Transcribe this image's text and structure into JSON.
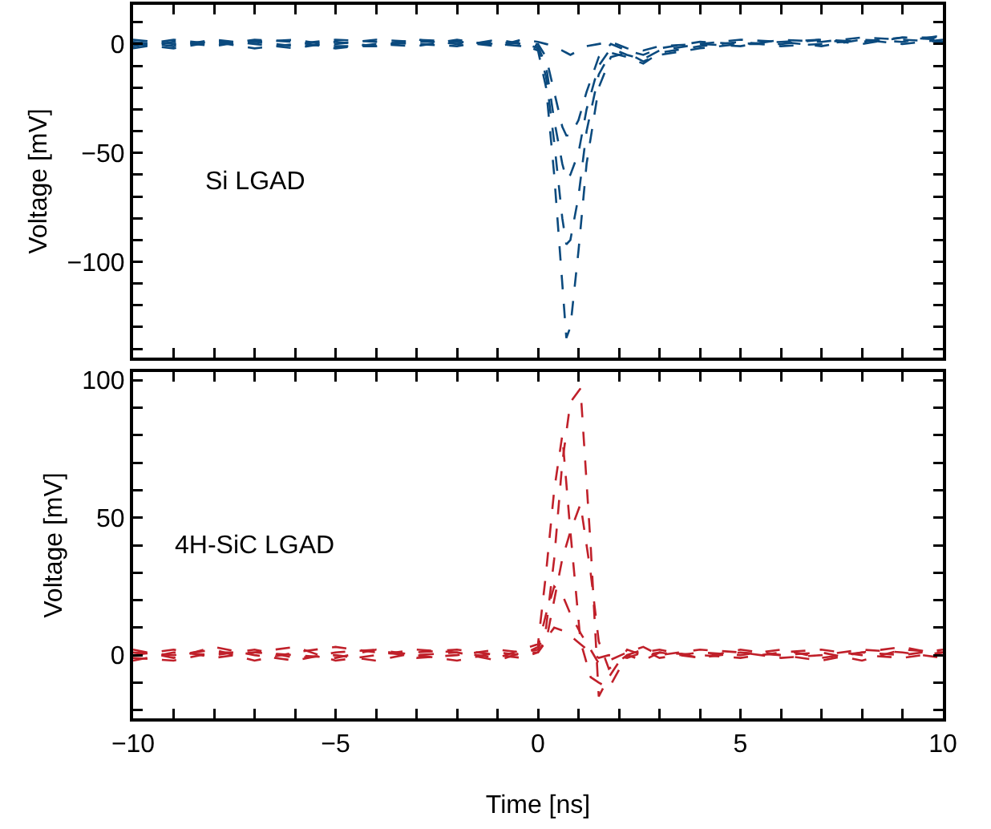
{
  "chart_data": [
    {
      "type": "line",
      "ylabel": "Voltage [mV]",
      "annotations": [
        "Si LGAD"
      ],
      "line_style": "dashed",
      "marker": "none",
      "grid": false,
      "tick_labels": "y",
      "xlim": [
        -10,
        10
      ],
      "xticks": [
        -10,
        {
          "value": -9,
          "label": null
        },
        {
          "value": -8,
          "label": null
        },
        {
          "value": -7,
          "label": null
        },
        {
          "value": -6,
          "label": null
        },
        -5,
        {
          "value": -4,
          "label": null
        },
        {
          "value": -3,
          "label": null
        },
        {
          "value": -2,
          "label": null
        },
        {
          "value": -1,
          "label": null
        },
        0,
        {
          "value": 1,
          "label": null
        },
        {
          "value": 2,
          "label": null
        },
        {
          "value": 3,
          "label": null
        },
        {
          "value": 4,
          "label": null
        },
        5,
        {
          "value": 6,
          "label": null
        },
        {
          "value": 7,
          "label": null
        },
        {
          "value": 8,
          "label": null
        },
        {
          "value": 9,
          "label": null
        },
        10
      ],
      "ylim": [
        -144,
        18
      ],
      "yticks": [
        {
          "value": -140,
          "label": null
        },
        {
          "value": -130,
          "label": null
        },
        {
          "value": -120,
          "label": null
        },
        {
          "value": -110,
          "label": null
        },
        -100,
        {
          "value": -90,
          "label": null
        },
        {
          "value": -80,
          "label": null
        },
        {
          "value": -70,
          "label": null
        },
        {
          "value": -60,
          "label": null
        },
        -50,
        {
          "value": -40,
          "label": null
        },
        {
          "value": -30,
          "label": null
        },
        {
          "value": -20,
          "label": null
        },
        {
          "value": -10,
          "label": null
        },
        0,
        {
          "value": 10,
          "label": null
        }
      ],
      "x": [
        -10,
        -9,
        -8,
        -7,
        -6,
        -5,
        -4,
        -3,
        -2,
        -1,
        -0.4,
        0,
        0.2,
        0.4,
        0.6,
        0.7,
        0.8,
        1.0,
        1.2,
        1.5,
        1.8,
        2.2,
        2.6,
        3,
        4,
        5,
        6,
        7,
        8,
        9,
        10
      ],
      "series": [
        {
          "color": "#0b4a7e",
          "values": [
            1,
            -1,
            2,
            0,
            -2,
            1,
            -1,
            2,
            0,
            1,
            0,
            -3,
            -20,
            -60,
            -110,
            -135,
            -130,
            -95,
            -55,
            -20,
            -6,
            -4,
            -8,
            -5,
            -2,
            0,
            1,
            2,
            0,
            3,
            2
          ]
        },
        {
          "color": "#0b4a7e",
          "values": [
            -2,
            1,
            -1,
            2,
            1,
            -2,
            0,
            -1,
            2,
            -1,
            1,
            -2,
            -15,
            -45,
            -80,
            -92,
            -90,
            -70,
            -40,
            -14,
            -4,
            -6,
            -9,
            -4,
            -1,
            1,
            -1,
            0,
            2,
            1,
            4
          ]
        },
        {
          "color": "#0b4a7e",
          "values": [
            2,
            0,
            1,
            -2,
            0,
            2,
            1,
            0,
            -1,
            2,
            0,
            -1,
            -10,
            -35,
            -55,
            -62,
            -60,
            -50,
            -30,
            -10,
            -2,
            -5,
            -7,
            -3,
            0,
            -1,
            2,
            1,
            3,
            2,
            1
          ]
        },
        {
          "color": "#0b4a7e",
          "values": [
            -1,
            2,
            0,
            1,
            -1,
            0,
            2,
            1,
            1,
            0,
            -1,
            0,
            -6,
            -22,
            -38,
            -42,
            -42,
            -35,
            -22,
            -6,
            0,
            -3,
            -5,
            -2,
            1,
            0,
            0,
            2,
            1,
            3,
            3
          ]
        },
        {
          "color": "#0b4a7e",
          "values": [
            0,
            -2,
            1,
            1,
            2,
            -1,
            -1,
            2,
            1,
            -1,
            2,
            1,
            0,
            -1,
            -3,
            -4,
            -5,
            -3,
            -1,
            0,
            1,
            -2,
            -3,
            -1,
            0,
            2,
            1,
            -1,
            2,
            0,
            2
          ]
        }
      ]
    },
    {
      "type": "line",
      "xlabel": "Time [ns]",
      "ylabel": "Voltage [mV]",
      "annotations": [
        "4H-SiC LGAD"
      ],
      "line_style": "dashed",
      "marker": "none",
      "grid": false,
      "xlim": [
        -10,
        10
      ],
      "xticks": [
        -10,
        {
          "value": -9,
          "label": null
        },
        {
          "value": -8,
          "label": null
        },
        {
          "value": -7,
          "label": null
        },
        {
          "value": -6,
          "label": null
        },
        -5,
        {
          "value": -4,
          "label": null
        },
        {
          "value": -3,
          "label": null
        },
        {
          "value": -2,
          "label": null
        },
        {
          "value": -1,
          "label": null
        },
        0,
        {
          "value": 1,
          "label": null
        },
        {
          "value": 2,
          "label": null
        },
        {
          "value": 3,
          "label": null
        },
        {
          "value": 4,
          "label": null
        },
        5,
        {
          "value": 6,
          "label": null
        },
        {
          "value": 7,
          "label": null
        },
        {
          "value": 8,
          "label": null
        },
        {
          "value": 9,
          "label": null
        },
        10
      ],
      "ylim": [
        -23,
        103
      ],
      "yticks": [
        {
          "value": -20,
          "label": null
        },
        {
          "value": -10,
          "label": null
        },
        0,
        {
          "value": 10,
          "label": null
        },
        {
          "value": 20,
          "label": null
        },
        {
          "value": 30,
          "label": null
        },
        {
          "value": 40,
          "label": null
        },
        50,
        {
          "value": 60,
          "label": null
        },
        {
          "value": 70,
          "label": null
        },
        {
          "value": 80,
          "label": null
        },
        {
          "value": 90,
          "label": null
        },
        100
      ],
      "x": [
        -10,
        -9,
        -8,
        -7,
        -6,
        -5,
        -4,
        -3,
        -2,
        -1,
        -0.4,
        0,
        0.2,
        0.4,
        0.6,
        0.8,
        1.05,
        1.3,
        1.5,
        1.75,
        2.2,
        2.6,
        3,
        4,
        5,
        6,
        7,
        8,
        9,
        10
      ],
      "series": [
        {
          "color": "#c0202a",
          "values": [
            2,
            -1,
            3,
            0,
            -2,
            1,
            2,
            -1,
            0,
            2,
            1,
            2,
            10,
            35,
            70,
            92,
            97,
            40,
            -15,
            -8,
            2,
            0,
            1,
            -1,
            2,
            0,
            1,
            -2,
            2,
            1
          ]
        },
        {
          "color": "#c0202a",
          "values": [
            0,
            2,
            -1,
            1,
            3,
            -2,
            0,
            2,
            1,
            -1,
            2,
            4,
            30,
            60,
            80,
            45,
            5,
            -8,
            -10,
            -12,
            0,
            2,
            -1,
            1,
            0,
            2,
            -1,
            1,
            0,
            2
          ]
        },
        {
          "color": "#c0202a",
          "values": [
            -2,
            1,
            0,
            2,
            -1,
            0,
            -2,
            1,
            2,
            0,
            -1,
            1,
            5,
            20,
            35,
            45,
            55,
            30,
            5,
            -5,
            0,
            -2,
            1,
            0,
            -1,
            1,
            2,
            0,
            -1,
            1
          ]
        },
        {
          "color": "#c0202a",
          "values": [
            1,
            0,
            2,
            -2,
            1,
            3,
            1,
            0,
            -2,
            1,
            0,
            3,
            15,
            25,
            22,
            15,
            8,
            2,
            -3,
            -2,
            1,
            3,
            0,
            2,
            1,
            -1,
            0,
            2,
            1,
            -1
          ]
        },
        {
          "color": "#c0202a",
          "values": [
            -1,
            -2,
            1,
            1,
            0,
            -1,
            2,
            0,
            1,
            -2,
            1,
            1,
            6,
            10,
            9,
            7,
            4,
            1,
            -1,
            0,
            -1,
            1,
            2,
            -1,
            1,
            0,
            -2,
            1,
            3,
            0
          ]
        }
      ]
    }
  ]
}
